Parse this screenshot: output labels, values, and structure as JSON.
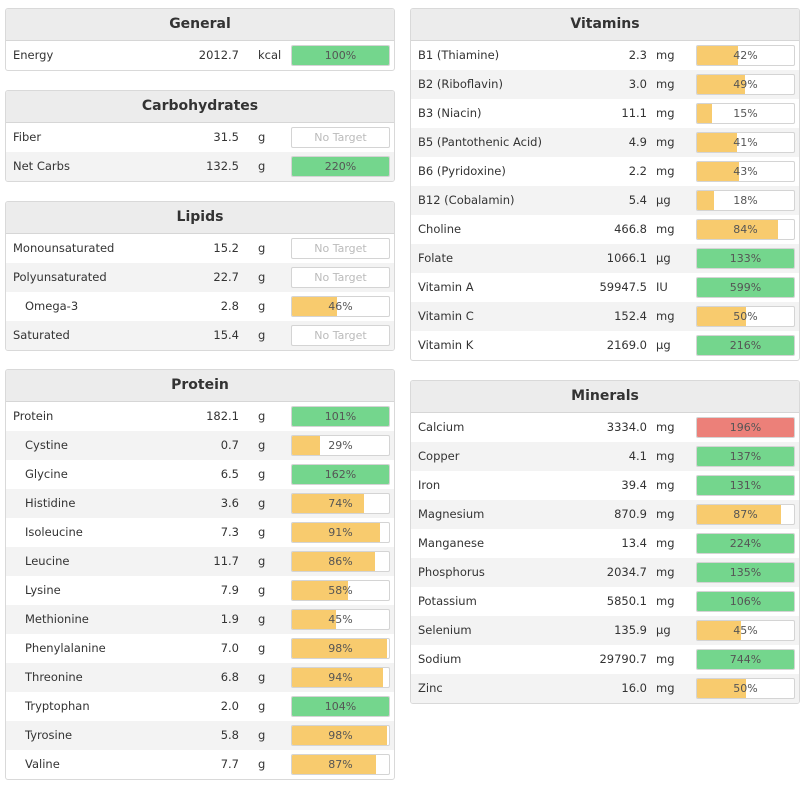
{
  "colors": {
    "green": "#74d68d",
    "orange": "#f8cb6e",
    "red": "#ec8079"
  },
  "panels": [
    {
      "id": "general",
      "title": "General",
      "column": "left",
      "rows": [
        {
          "name": "Energy",
          "amount": "2012.7",
          "unit": "kcal",
          "label": "100%",
          "fill": 1.0,
          "color": "green"
        }
      ]
    },
    {
      "id": "carbohydrates",
      "title": "Carbohydrates",
      "column": "left",
      "rows": [
        {
          "name": "Fiber",
          "amount": "31.5",
          "unit": "g",
          "label": "No Target",
          "fill": 0,
          "color": "none"
        },
        {
          "name": "Net Carbs",
          "amount": "132.5",
          "unit": "g",
          "label": "220%",
          "fill": 1.0,
          "color": "green"
        }
      ]
    },
    {
      "id": "lipids",
      "title": "Lipids",
      "column": "left",
      "rows": [
        {
          "name": "Monounsaturated",
          "amount": "15.2",
          "unit": "g",
          "label": "No Target",
          "fill": 0,
          "color": "none"
        },
        {
          "name": "Polyunsaturated",
          "amount": "22.7",
          "unit": "g",
          "label": "No Target",
          "fill": 0,
          "color": "none"
        },
        {
          "name": "Omega-3",
          "amount": "2.8",
          "unit": "g",
          "label": "46%",
          "fill": 0.46,
          "color": "orange",
          "indent": true
        },
        {
          "name": "Saturated",
          "amount": "15.4",
          "unit": "g",
          "label": "No Target",
          "fill": 0,
          "color": "none"
        }
      ]
    },
    {
      "id": "protein",
      "title": "Protein",
      "column": "left",
      "rows": [
        {
          "name": "Protein",
          "amount": "182.1",
          "unit": "g",
          "label": "101%",
          "fill": 1.0,
          "color": "green"
        },
        {
          "name": "Cystine",
          "amount": "0.7",
          "unit": "g",
          "label": "29%",
          "fill": 0.29,
          "color": "orange",
          "indent": true
        },
        {
          "name": "Glycine",
          "amount": "6.5",
          "unit": "g",
          "label": "162%",
          "fill": 1.0,
          "color": "green",
          "indent": true
        },
        {
          "name": "Histidine",
          "amount": "3.6",
          "unit": "g",
          "label": "74%",
          "fill": 0.74,
          "color": "orange",
          "indent": true
        },
        {
          "name": "Isoleucine",
          "amount": "7.3",
          "unit": "g",
          "label": "91%",
          "fill": 0.91,
          "color": "orange",
          "indent": true
        },
        {
          "name": "Leucine",
          "amount": "11.7",
          "unit": "g",
          "label": "86%",
          "fill": 0.86,
          "color": "orange",
          "indent": true
        },
        {
          "name": "Lysine",
          "amount": "7.9",
          "unit": "g",
          "label": "58%",
          "fill": 0.58,
          "color": "orange",
          "indent": true
        },
        {
          "name": "Methionine",
          "amount": "1.9",
          "unit": "g",
          "label": "45%",
          "fill": 0.45,
          "color": "orange",
          "indent": true
        },
        {
          "name": "Phenylalanine",
          "amount": "7.0",
          "unit": "g",
          "label": "98%",
          "fill": 0.98,
          "color": "orange",
          "indent": true
        },
        {
          "name": "Threonine",
          "amount": "6.8",
          "unit": "g",
          "label": "94%",
          "fill": 0.94,
          "color": "orange",
          "indent": true
        },
        {
          "name": "Tryptophan",
          "amount": "2.0",
          "unit": "g",
          "label": "104%",
          "fill": 1.0,
          "color": "green",
          "indent": true
        },
        {
          "name": "Tyrosine",
          "amount": "5.8",
          "unit": "g",
          "label": "98%",
          "fill": 0.98,
          "color": "orange",
          "indent": true
        },
        {
          "name": "Valine",
          "amount": "7.7",
          "unit": "g",
          "label": "87%",
          "fill": 0.87,
          "color": "orange",
          "indent": true
        }
      ]
    },
    {
      "id": "vitamins",
      "title": "Vitamins",
      "column": "right",
      "rows": [
        {
          "name": "B1 (Thiamine)",
          "amount": "2.3",
          "unit": "mg",
          "label": "42%",
          "fill": 0.42,
          "color": "orange"
        },
        {
          "name": "B2 (Riboflavin)",
          "amount": "3.0",
          "unit": "mg",
          "label": "49%",
          "fill": 0.49,
          "color": "orange"
        },
        {
          "name": "B3 (Niacin)",
          "amount": "11.1",
          "unit": "mg",
          "label": "15%",
          "fill": 0.15,
          "color": "orange"
        },
        {
          "name": "B5 (Pantothenic Acid)",
          "amount": "4.9",
          "unit": "mg",
          "label": "41%",
          "fill": 0.41,
          "color": "orange"
        },
        {
          "name": "B6 (Pyridoxine)",
          "amount": "2.2",
          "unit": "mg",
          "label": "43%",
          "fill": 0.43,
          "color": "orange"
        },
        {
          "name": "B12 (Cobalamin)",
          "amount": "5.4",
          "unit": "µg",
          "label": "18%",
          "fill": 0.18,
          "color": "orange"
        },
        {
          "name": "Choline",
          "amount": "466.8",
          "unit": "mg",
          "label": "84%",
          "fill": 0.84,
          "color": "orange"
        },
        {
          "name": "Folate",
          "amount": "1066.1",
          "unit": "µg",
          "label": "133%",
          "fill": 1.0,
          "color": "green"
        },
        {
          "name": "Vitamin A",
          "amount": "59947.5",
          "unit": "IU",
          "label": "599%",
          "fill": 1.0,
          "color": "green"
        },
        {
          "name": "Vitamin C",
          "amount": "152.4",
          "unit": "mg",
          "label": "50%",
          "fill": 0.5,
          "color": "orange"
        },
        {
          "name": "Vitamin K",
          "amount": "2169.0",
          "unit": "µg",
          "label": "216%",
          "fill": 1.0,
          "color": "green"
        }
      ]
    },
    {
      "id": "minerals",
      "title": "Minerals",
      "column": "right",
      "rows": [
        {
          "name": "Calcium",
          "amount": "3334.0",
          "unit": "mg",
          "label": "196%",
          "fill": 1.0,
          "color": "red"
        },
        {
          "name": "Copper",
          "amount": "4.1",
          "unit": "mg",
          "label": "137%",
          "fill": 1.0,
          "color": "green"
        },
        {
          "name": "Iron",
          "amount": "39.4",
          "unit": "mg",
          "label": "131%",
          "fill": 1.0,
          "color": "green"
        },
        {
          "name": "Magnesium",
          "amount": "870.9",
          "unit": "mg",
          "label": "87%",
          "fill": 0.87,
          "color": "orange"
        },
        {
          "name": "Manganese",
          "amount": "13.4",
          "unit": "mg",
          "label": "224%",
          "fill": 1.0,
          "color": "green"
        },
        {
          "name": "Phosphorus",
          "amount": "2034.7",
          "unit": "mg",
          "label": "135%",
          "fill": 1.0,
          "color": "green"
        },
        {
          "name": "Potassium",
          "amount": "5850.1",
          "unit": "mg",
          "label": "106%",
          "fill": 1.0,
          "color": "green"
        },
        {
          "name": "Selenium",
          "amount": "135.9",
          "unit": "µg",
          "label": "45%",
          "fill": 0.45,
          "color": "orange"
        },
        {
          "name": "Sodium",
          "amount": "29790.7",
          "unit": "mg",
          "label": "744%",
          "fill": 1.0,
          "color": "green"
        },
        {
          "name": "Zinc",
          "amount": "16.0",
          "unit": "mg",
          "label": "50%",
          "fill": 0.5,
          "color": "orange"
        }
      ]
    }
  ]
}
